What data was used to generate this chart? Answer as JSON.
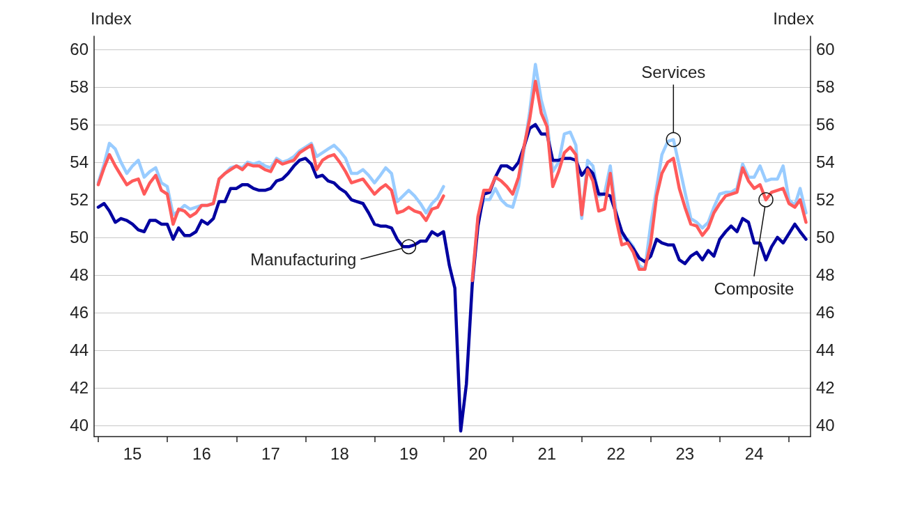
{
  "chart_data": {
    "type": "line",
    "ylabel": "Index",
    "y2label": "Index",
    "x": [
      "2015-01",
      "2015-02",
      "2015-03",
      "2015-04",
      "2015-05",
      "2015-06",
      "2015-07",
      "2015-08",
      "2015-09",
      "2015-10",
      "2015-11",
      "2015-12",
      "2016-01",
      "2016-02",
      "2016-03",
      "2016-04",
      "2016-05",
      "2016-06",
      "2016-07",
      "2016-08",
      "2016-09",
      "2016-10",
      "2016-11",
      "2016-12",
      "2017-01",
      "2017-02",
      "2017-03",
      "2017-04",
      "2017-05",
      "2017-06",
      "2017-07",
      "2017-08",
      "2017-09",
      "2017-10",
      "2017-11",
      "2017-12",
      "2018-01",
      "2018-02",
      "2018-03",
      "2018-04",
      "2018-05",
      "2018-06",
      "2018-07",
      "2018-08",
      "2018-09",
      "2018-10",
      "2018-11",
      "2018-12",
      "2019-01",
      "2019-02",
      "2019-03",
      "2019-04",
      "2019-05",
      "2019-06",
      "2019-07",
      "2019-08",
      "2019-09",
      "2019-10",
      "2019-11",
      "2019-12",
      "2020-01",
      "2020-02",
      "2020-03",
      "2020-04",
      "2020-05",
      "2020-06",
      "2020-07",
      "2020-08",
      "2020-09",
      "2020-10",
      "2020-11",
      "2020-12",
      "2021-01",
      "2021-02",
      "2021-03",
      "2021-04",
      "2021-05",
      "2021-06",
      "2021-07",
      "2021-08",
      "2021-09",
      "2021-10",
      "2021-11",
      "2021-12",
      "2022-01",
      "2022-02",
      "2022-03",
      "2022-04",
      "2022-05",
      "2022-06",
      "2022-07",
      "2022-08",
      "2022-09",
      "2022-10",
      "2022-11",
      "2022-12",
      "2023-01",
      "2023-02",
      "2023-03",
      "2023-04",
      "2023-05",
      "2023-06",
      "2023-07",
      "2023-08",
      "2023-09",
      "2023-10",
      "2023-11",
      "2023-12",
      "2024-01",
      "2024-02",
      "2024-03",
      "2024-04",
      "2024-05",
      "2024-06",
      "2024-07",
      "2024-08",
      "2024-09",
      "2024-10",
      "2024-11",
      "2024-12",
      "2025-01",
      "2025-02",
      "2025-03",
      "2025-04"
    ],
    "series": [
      {
        "name": "Services",
        "color": "#99ccff",
        "values": [
          52.9,
          53.9,
          55.0,
          54.7,
          54.0,
          53.4,
          53.8,
          54.1,
          53.2,
          53.5,
          53.7,
          52.9,
          52.7,
          51.2,
          51.4,
          51.7,
          51.5,
          51.6,
          51.7,
          51.7,
          51.8,
          53.1,
          53.4,
          53.7,
          53.8,
          53.7,
          54.0,
          53.9,
          54.0,
          53.8,
          53.7,
          54.2,
          54.0,
          54.1,
          54.3,
          54.6,
          54.8,
          55.0,
          54.3,
          54.5,
          54.7,
          54.9,
          54.6,
          54.2,
          53.4,
          53.4,
          53.6,
          53.3,
          52.9,
          53.3,
          53.7,
          53.4,
          51.9,
          52.2,
          52.5,
          52.2,
          51.8,
          51.3,
          51.8,
          52.1,
          52.7,
          null,
          null,
          null,
          null,
          47.7,
          51.0,
          52.0,
          52.0,
          52.6,
          52.0,
          51.7,
          51.6,
          52.7,
          54.6,
          56.7,
          59.2,
          57.3,
          56.2,
          53.5,
          54.0,
          55.5,
          55.6,
          54.9,
          51.0,
          54.1,
          53.8,
          52.2,
          52.3,
          53.8,
          51.4,
          50.0,
          49.9,
          49.5,
          48.5,
          48.3,
          50.7,
          52.6,
          54.4,
          55.1,
          55.2,
          53.8,
          52.4,
          51.0,
          50.8,
          50.5,
          50.8,
          51.6,
          52.3,
          52.4,
          52.4,
          52.6,
          53.9,
          53.2,
          53.2,
          53.8,
          53.0,
          53.1,
          53.1,
          53.8,
          52.0,
          51.7,
          52.6,
          51.3
        ]
      },
      {
        "name": "Manufacturing",
        "color": "#0000a0",
        "values": [
          51.6,
          51.8,
          51.4,
          50.8,
          51.0,
          50.9,
          50.7,
          50.4,
          50.3,
          50.9,
          50.9,
          50.7,
          50.7,
          49.9,
          50.5,
          50.1,
          50.1,
          50.3,
          50.9,
          50.7,
          51.0,
          51.9,
          51.9,
          52.6,
          52.6,
          52.8,
          52.8,
          52.6,
          52.5,
          52.5,
          52.6,
          53.0,
          53.1,
          53.4,
          53.8,
          54.1,
          54.2,
          53.9,
          53.2,
          53.3,
          53.0,
          52.9,
          52.6,
          52.4,
          52.0,
          51.9,
          51.8,
          51.3,
          50.7,
          50.6,
          50.6,
          50.5,
          49.9,
          49.5,
          49.5,
          49.6,
          49.8,
          49.8,
          50.3,
          50.1,
          50.3,
          48.5,
          47.3,
          39.7,
          42.2,
          47.5,
          50.6,
          52.3,
          52.4,
          53.2,
          53.8,
          53.8,
          53.6,
          54.0,
          54.8,
          55.8,
          56.0,
          55.5,
          55.5,
          54.1,
          54.1,
          54.2,
          54.2,
          54.1,
          53.3,
          53.7,
          53.4,
          52.3,
          52.3,
          52.2,
          51.3,
          50.3,
          49.8,
          49.4,
          48.9,
          48.7,
          49.0,
          49.9,
          49.7,
          49.6,
          49.6,
          48.8,
          48.6,
          49.0,
          49.2,
          48.8,
          49.3,
          49.0,
          49.9,
          50.3,
          50.6,
          50.3,
          51.0,
          50.8,
          49.7,
          49.7,
          48.8,
          49.5,
          50.0,
          49.7,
          50.2,
          50.7,
          50.3,
          49.9
        ]
      },
      {
        "name": "Composite",
        "color": "#ff5a5a",
        "values": [
          52.8,
          53.7,
          54.4,
          53.8,
          53.3,
          52.8,
          53.0,
          53.1,
          52.3,
          52.9,
          53.3,
          52.5,
          52.3,
          50.7,
          51.5,
          51.4,
          51.1,
          51.3,
          51.7,
          51.7,
          51.8,
          53.1,
          53.4,
          53.6,
          53.8,
          53.6,
          53.9,
          53.8,
          53.8,
          53.6,
          53.5,
          54.1,
          53.9,
          54.0,
          54.1,
          54.5,
          54.7,
          54.9,
          53.6,
          54.1,
          54.3,
          54.4,
          54.0,
          53.5,
          52.9,
          53.0,
          53.1,
          52.7,
          52.3,
          52.6,
          52.8,
          52.5,
          51.3,
          51.4,
          51.6,
          51.4,
          51.3,
          50.9,
          51.5,
          51.6,
          52.2,
          null,
          null,
          null,
          null,
          47.7,
          51.1,
          52.5,
          52.5,
          53.2,
          53.0,
          52.7,
          52.3,
          53.2,
          54.8,
          56.3,
          58.3,
          56.6,
          55.9,
          52.7,
          53.5,
          54.5,
          54.8,
          54.4,
          51.2,
          53.6,
          53.0,
          51.4,
          51.5,
          53.4,
          51.0,
          49.6,
          49.7,
          49.2,
          48.3,
          48.3,
          49.7,
          52.2,
          53.4,
          54.0,
          54.2,
          52.6,
          51.6,
          50.7,
          50.6,
          50.1,
          50.5,
          51.3,
          51.8,
          52.2,
          52.3,
          52.4,
          53.7,
          53.0,
          52.6,
          52.8,
          52.0,
          52.4,
          52.5,
          52.6,
          51.8,
          51.6,
          52.0,
          50.8
        ]
      }
    ],
    "xlim": [
      "2014-12-10",
      "2025-04-25"
    ],
    "xticks": [
      {
        "value": "2015-01-01",
        "label": null
      },
      {
        "value": "2015-07-01",
        "label": "15"
      },
      {
        "value": "2016-01-01",
        "label": null
      },
      {
        "value": "2016-07-01",
        "label": "16"
      },
      {
        "value": "2017-01-01",
        "label": null
      },
      {
        "value": "2017-07-01",
        "label": "17"
      },
      {
        "value": "2018-01-01",
        "label": null
      },
      {
        "value": "2018-07-01",
        "label": "18"
      },
      {
        "value": "2019-01-01",
        "label": null
      },
      {
        "value": "2019-07-01",
        "label": "19"
      },
      {
        "value": "2020-01-01",
        "label": null
      },
      {
        "value": "2020-07-01",
        "label": "20"
      },
      {
        "value": "2021-01-01",
        "label": null
      },
      {
        "value": "2021-07-01",
        "label": "21"
      },
      {
        "value": "2022-01-01",
        "label": null
      },
      {
        "value": "2022-07-01",
        "label": "22"
      },
      {
        "value": "2023-01-01",
        "label": null
      },
      {
        "value": "2023-07-01",
        "label": "23"
      },
      {
        "value": "2024-01-01",
        "label": null
      },
      {
        "value": "2024-07-01",
        "label": "24"
      },
      {
        "value": "2025-01-01",
        "label": null
      }
    ],
    "ylim": [
      39.4,
      60.7
    ],
    "yticks": [
      40,
      42,
      44,
      46,
      48,
      50,
      52,
      54,
      56,
      58,
      60
    ],
    "y2lim": [
      39.4,
      60.7
    ],
    "y2ticks": [
      40,
      42,
      44,
      46,
      48,
      50,
      52,
      54,
      56,
      58,
      60
    ],
    "grid": "y",
    "marker": "none",
    "line_style": "solid"
  }
}
